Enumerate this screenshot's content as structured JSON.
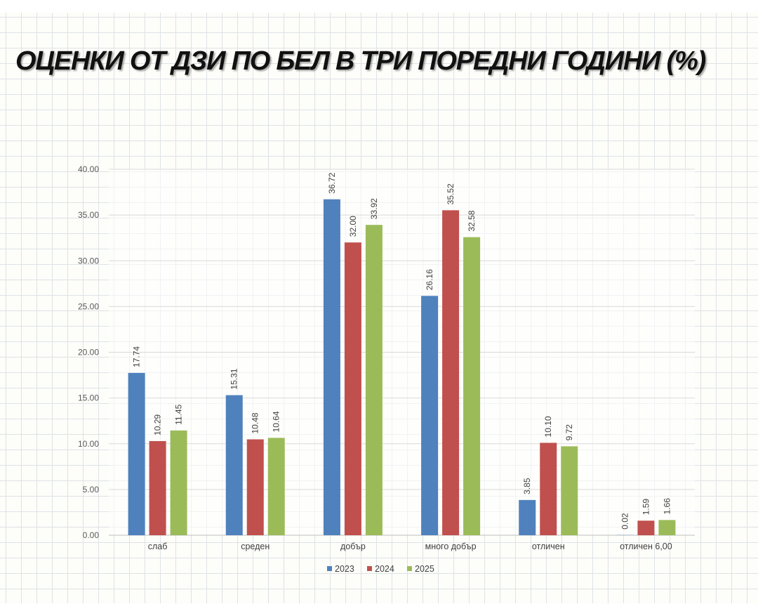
{
  "title": "ОЦЕНКИ ОТ ДЗИ ПО БЕЛ В ТРИ ПОРЕДНИ ГОДИНИ (%)",
  "chart_data": {
    "type": "bar",
    "title": "ОЦЕНКИ ОТ ДЗИ ПО БЕЛ В ТРИ ПОРЕДНИ ГОДИНИ (%)",
    "categories": [
      "слаб",
      "среден",
      "добър",
      "много добър",
      "отличен",
      "отличен 6,00"
    ],
    "series": [
      {
        "name": "2023",
        "color": "#4f81bd",
        "values": [
          17.74,
          15.31,
          36.72,
          26.16,
          3.85,
          0.02
        ]
      },
      {
        "name": "2024",
        "color": "#c0504d",
        "values": [
          10.29,
          10.48,
          32.0,
          35.52,
          10.1,
          1.59
        ]
      },
      {
        "name": "2025",
        "color": "#9bbb59",
        "values": [
          11.45,
          10.64,
          33.92,
          32.58,
          9.72,
          1.66
        ]
      }
    ],
    "ylim": [
      0,
      40
    ],
    "yticks": [
      "0.00",
      "5.00",
      "10.00",
      "15.00",
      "20.00",
      "25.00",
      "30.00",
      "35.00",
      "40.00"
    ],
    "grid": true,
    "legend_position": "bottom"
  }
}
